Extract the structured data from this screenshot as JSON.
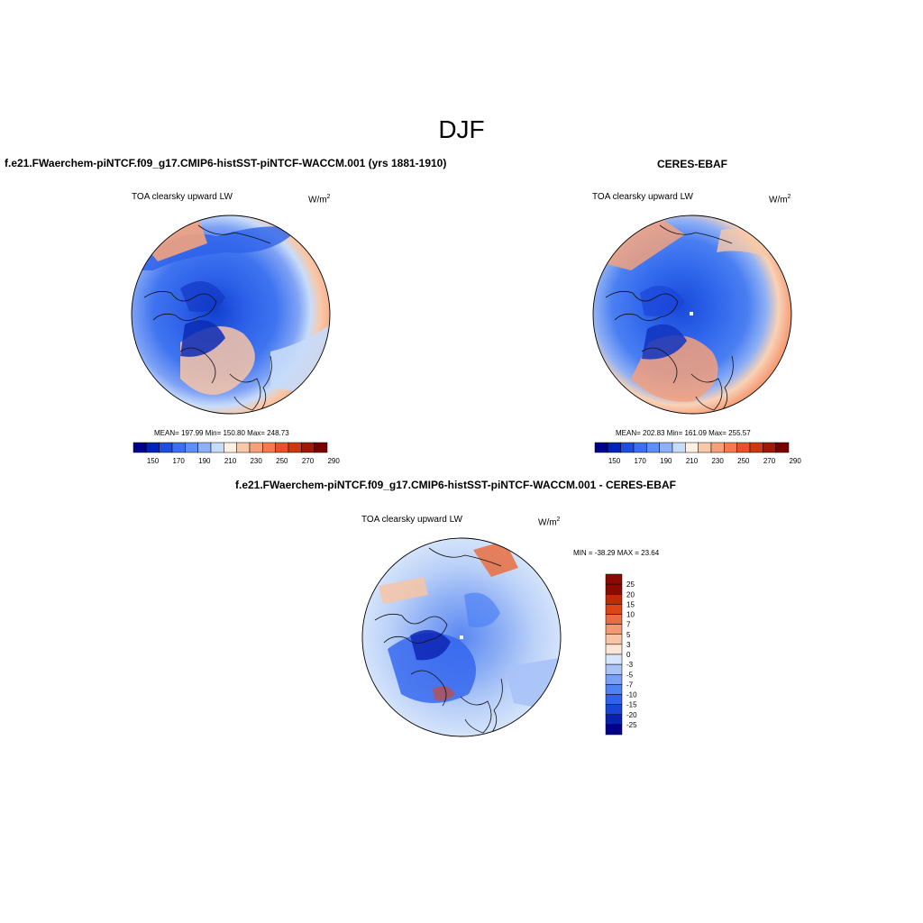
{
  "title": "DJF",
  "panels": [
    {
      "case_title": "f.e21.FWaerchem-piNTCF.f09_g17.CMIP6-histSST-piNTCF-WACCM.001 (yrs 1881-1910)",
      "variable": "TOA clearsky upward LW",
      "units_base": "W/m",
      "units_exp": "2",
      "stats": "MEAN= 197.99  Min= 150.80  Max= 248.73",
      "colorbar_labels": [
        "150",
        "170",
        "190",
        "210",
        "230",
        "250",
        "270",
        "290"
      ]
    },
    {
      "case_title": "CERES-EBAF",
      "variable": "TOA clearsky upward LW",
      "units_base": "W/m",
      "units_exp": "2",
      "stats": "MEAN= 202.83  Min= 161.09  Max= 255.57",
      "colorbar_labels": [
        "150",
        "170",
        "190",
        "210",
        "230",
        "250",
        "270",
        "290"
      ]
    },
    {
      "case_title": "f.e21.FWaerchem-piNTCF.f09_g17.CMIP6-histSST-piNTCF-WACCM.001 - CERES-EBAF",
      "variable": "TOA clearsky upward LW",
      "units_base": "W/m",
      "units_exp": "2",
      "stats": "MIN = -38.29 MAX =  23.64",
      "colorbar_labels": [
        "25",
        "20",
        "15",
        "10",
        "7",
        "5",
        "3",
        "0",
        "-3",
        "-5",
        "-7",
        "-10",
        "-15",
        "-20",
        "-25"
      ]
    }
  ],
  "colors": {
    "abs_scale": [
      "#00008b",
      "#0022bb",
      "#1e4fd8",
      "#3a6ff0",
      "#5f8ef5",
      "#8fb0f5",
      "#c7dcfa",
      "#fdf0e0",
      "#f9c8a8",
      "#f5a07a",
      "#f27b4f",
      "#e8522a",
      "#c93a10",
      "#9e1a08",
      "#7a0000"
    ],
    "diff_scale": [
      "#00008b",
      "#0a20b0",
      "#1a44d8",
      "#2f63ee",
      "#4f82f3",
      "#7aa0f5",
      "#a9c2f8",
      "#d6e5fb",
      "#fbe6d6",
      "#f7c4a6",
      "#f19a72",
      "#ea6d40",
      "#dd4418",
      "#c02a08",
      "#8b0a00"
    ]
  }
}
